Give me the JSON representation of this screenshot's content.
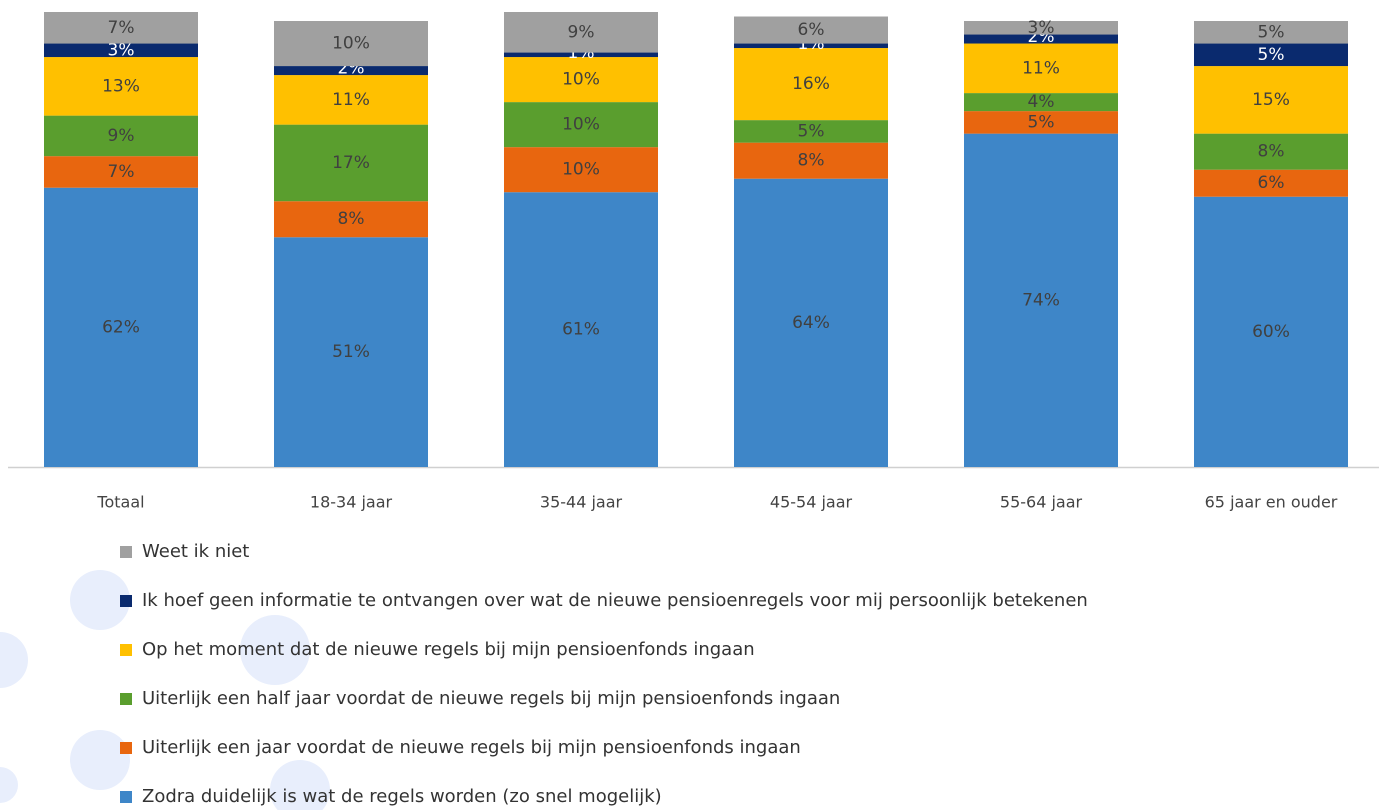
{
  "chart_data": {
    "type": "stacked_bar",
    "categories": [
      "Totaal",
      "18-34 jaar",
      "35-44 jaar",
      "45-54 jaar",
      "55-64 jaar",
      "65 jaar en ouder"
    ],
    "series": [
      {
        "name": "Zodra duidelijk is wat de regels worden (zo snel mogelijk)",
        "color": "#3e86c8",
        "values": [
          62,
          51,
          61,
          64,
          74,
          60
        ],
        "value_labels": [
          "62%",
          "51%",
          "61%",
          "64%",
          "74%",
          "60%"
        ]
      },
      {
        "name": "Uiterlijk een jaar voordat de nieuwe regels bij mijn pensioenfonds ingaan",
        "color": "#e8660f",
        "values": [
          7,
          8,
          10,
          8,
          5,
          6
        ],
        "value_labels": [
          "7%",
          "8%",
          "10%",
          "8%",
          "5%",
          "6%"
        ]
      },
      {
        "name": "Uiterlijk een half jaar voordat de nieuwe regels bij mijn pensioenfonds ingaan",
        "color": "#5a9e2e",
        "values": [
          9,
          17,
          10,
          5,
          4,
          8
        ],
        "value_labels": [
          "9%",
          "17%",
          "10%",
          "5%",
          "4%",
          "8%"
        ]
      },
      {
        "name": "Op het moment dat de nieuwe regels bij mijn pensioenfonds ingaan",
        "color": "#ffc000",
        "values": [
          13,
          11,
          10,
          16,
          11,
          15
        ],
        "value_labels": [
          "13%",
          "11%",
          "10%",
          "16%",
          "11%",
          "15%"
        ]
      },
      {
        "name": "Ik hoef geen informatie te ontvangen over wat de nieuwe pensioenregels voor mij persoonlijk betekenen",
        "color": "#0a2a6e",
        "values": [
          3,
          2,
          1,
          1,
          2,
          5
        ],
        "value_labels": [
          "3%",
          "2%",
          "1%",
          "1%",
          "2%",
          "5%"
        ]
      },
      {
        "name": "Weet ik niet",
        "color": "#a0a0a0",
        "values": [
          7,
          10,
          9,
          6,
          3,
          5
        ],
        "value_labels": [
          "7%",
          "10%",
          "9%",
          "6%",
          "3%",
          "5%"
        ]
      }
    ]
  }
}
